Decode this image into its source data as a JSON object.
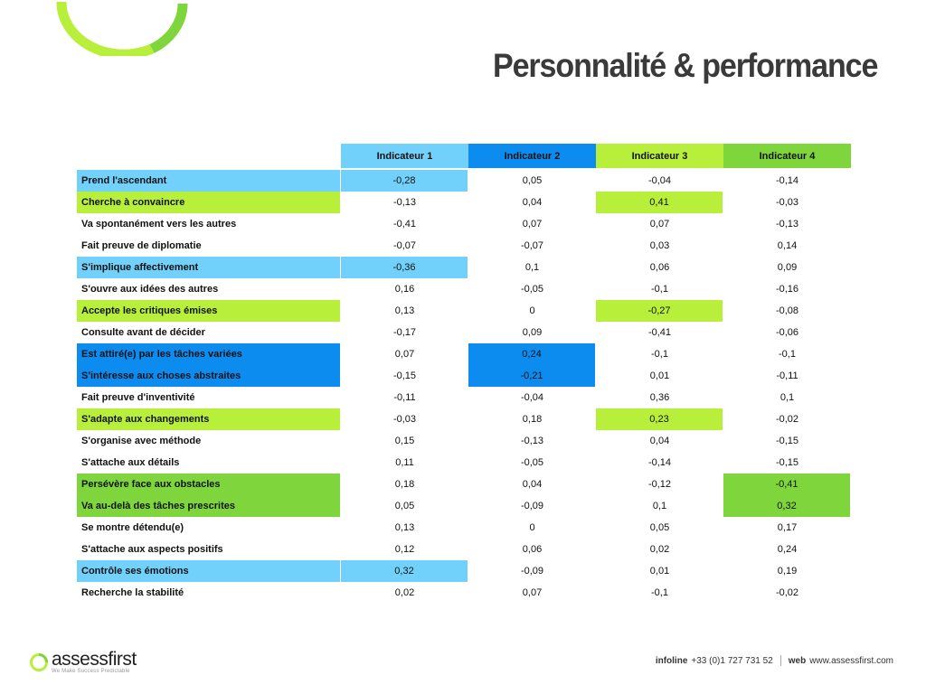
{
  "title": "Personnalité & performance",
  "colors": {
    "indicateur_1": "#72d1fb",
    "indicateur_2": "#0d8cf0",
    "indicateur_3": "#b8ef3a",
    "indicateur_4": "#7ed63c",
    "arc_lime": "#b8ef3a",
    "arc_green": "#7ed63c"
  },
  "headers": [
    "Indicateur 1",
    "Indicateur 2",
    "Indicateur 3",
    "Indicateur 4"
  ],
  "rows": [
    {
      "label": "Prend l'ascendant",
      "values": [
        "-0,28",
        "0,05",
        "-0,04",
        "-0,14"
      ],
      "label_color": "indicateur_1",
      "highlight": [
        0
      ]
    },
    {
      "label": "Cherche à convaincre",
      "values": [
        "-0,13",
        "0,04",
        "0,41",
        "-0,03"
      ],
      "label_color": "indicateur_3",
      "highlight": [
        2
      ]
    },
    {
      "label": "Va spontanément vers les autres",
      "values": [
        "-0,41",
        "0,07",
        "0,07",
        "-0,13"
      ],
      "label_color": "",
      "highlight": []
    },
    {
      "label": "Fait preuve de diplomatie",
      "values": [
        "-0,07",
        "-0,07",
        "0,03",
        "0,14"
      ],
      "label_color": "",
      "highlight": []
    },
    {
      "label": "S'implique affectivement",
      "values": [
        "-0,36",
        "0,1",
        "0,06",
        "0,09"
      ],
      "label_color": "indicateur_1",
      "highlight": [
        0
      ]
    },
    {
      "label": "S'ouvre aux idées des autres",
      "values": [
        "0,16",
        "-0,05",
        "-0,1",
        "-0,16"
      ],
      "label_color": "",
      "highlight": []
    },
    {
      "label": "Accepte les critiques émises",
      "values": [
        "0,13",
        "0",
        "-0,27",
        "-0,08"
      ],
      "label_color": "indicateur_3",
      "highlight": [
        2
      ]
    },
    {
      "label": "Consulte avant de décider",
      "values": [
        "-0,17",
        "0,09",
        "-0,41",
        "-0,06"
      ],
      "label_color": "",
      "highlight": []
    },
    {
      "label": "Est attiré(e) par les tâches variées",
      "values": [
        "0,07",
        "0,24",
        "-0,1",
        "-0,1"
      ],
      "label_color": "indicateur_2",
      "highlight": [
        1
      ]
    },
    {
      "label": "S'intéresse aux choses abstraites",
      "values": [
        "-0,15",
        "-0,21",
        "0,01",
        "-0,11"
      ],
      "label_color": "indicateur_2",
      "highlight": [
        1
      ]
    },
    {
      "label": "Fait preuve d'inventivité",
      "values": [
        "-0,11",
        "-0,04",
        "0,36",
        "0,1"
      ],
      "label_color": "",
      "highlight": []
    },
    {
      "label": "S'adapte aux changements",
      "values": [
        "-0,03",
        "0,18",
        "0,23",
        "-0,02"
      ],
      "label_color": "indicateur_3",
      "highlight": [
        2
      ]
    },
    {
      "label": "S'organise avec méthode",
      "values": [
        "0,15",
        "-0,13",
        "0,04",
        "-0,15"
      ],
      "label_color": "",
      "highlight": []
    },
    {
      "label": "S'attache aux détails",
      "values": [
        "0,11",
        "-0,05",
        "-0,14",
        "-0,15"
      ],
      "label_color": "",
      "highlight": []
    },
    {
      "label": "Persévère face aux obstacles",
      "values": [
        "0,18",
        "0,04",
        "-0,12",
        "-0,41"
      ],
      "label_color": "indicateur_4",
      "highlight": [
        3
      ]
    },
    {
      "label": "Va au-delà des tâches prescrites",
      "values": [
        "0,05",
        "-0,09",
        "0,1",
        "0,32"
      ],
      "label_color": "indicateur_4",
      "highlight": [
        3
      ]
    },
    {
      "label": "Se montre détendu(e)",
      "values": [
        "0,13",
        "0",
        "0,05",
        "0,17"
      ],
      "label_color": "",
      "highlight": []
    },
    {
      "label": "S'attache aux aspects positifs",
      "values": [
        "0,12",
        "0,06",
        "0,02",
        "0,24"
      ],
      "label_color": "",
      "highlight": []
    },
    {
      "label": "Contrôle ses émotions",
      "values": [
        "0,32",
        "-0,09",
        "0,01",
        "0,19"
      ],
      "label_color": "indicateur_1",
      "highlight": [
        0
      ]
    },
    {
      "label": "Recherche la stabilité",
      "values": [
        "0,02",
        "0,07",
        "-0,1",
        "-0,02"
      ],
      "label_color": "",
      "highlight": []
    }
  ],
  "footer": {
    "brand": "assessfirst",
    "tagline": "We Make Success Predictable",
    "infoline_label": "infoline",
    "infoline_value": "+33 (0)1 727 731 52",
    "web_label": "web",
    "web_value": "www.assessfirst.com",
    "logo_icon": "assessfirst-ring-icon"
  }
}
